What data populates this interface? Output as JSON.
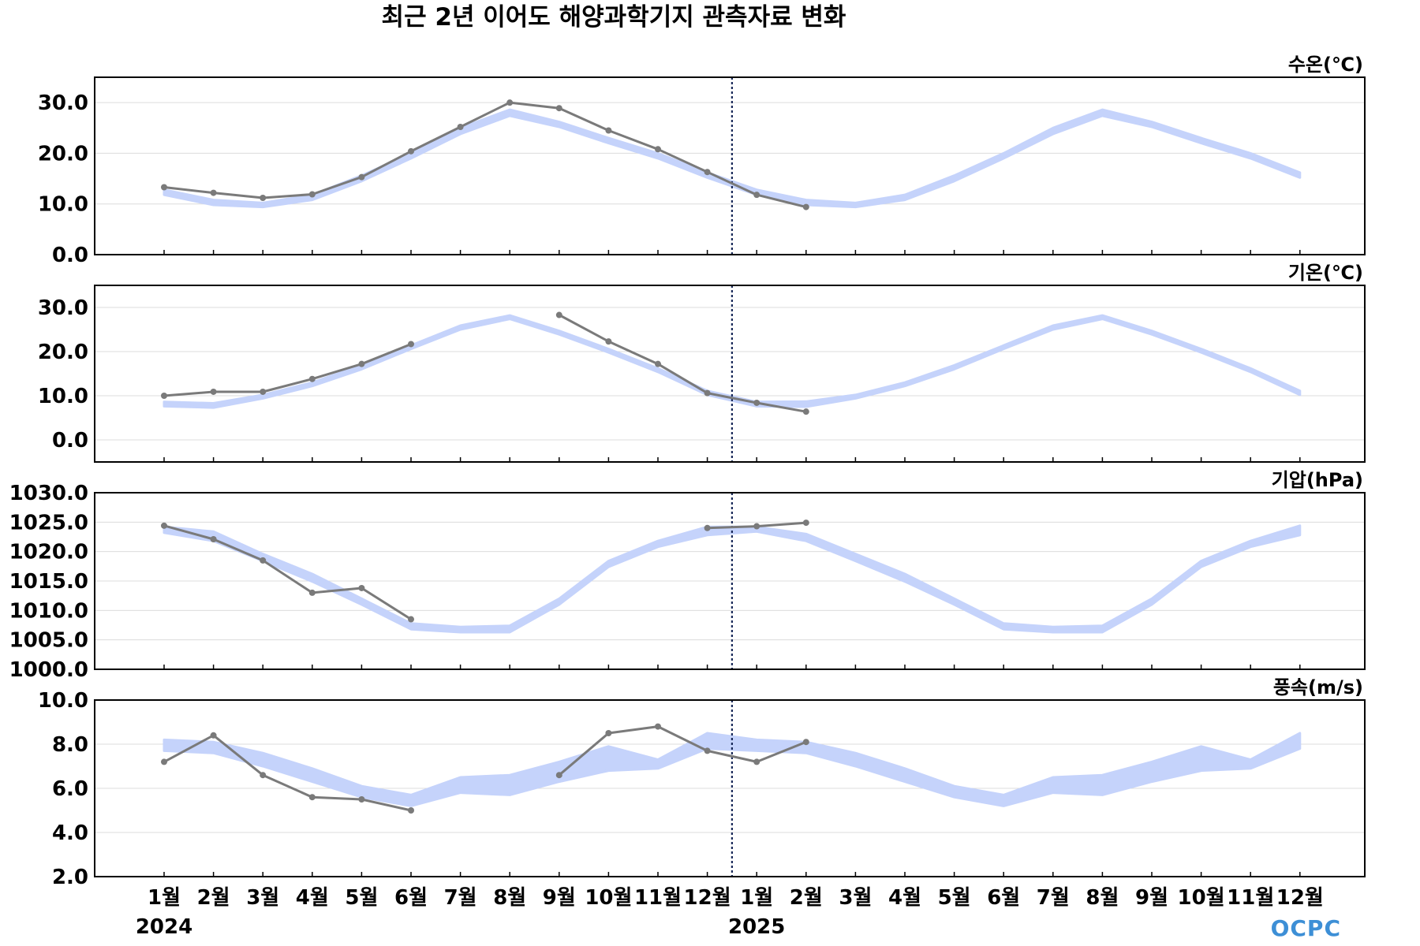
{
  "title": "최근 2년 이어도 해양과학기지 관측자료 변화",
  "logo": "OCPC",
  "colors": {
    "band": "#c5d3fb",
    "observed": "#7a7a7a",
    "divider": "#1a2a5a",
    "grid": "#dcdcdc"
  },
  "x_tick_labels": [
    "1월",
    "2월",
    "3월",
    "4월",
    "5월",
    "6월",
    "7월",
    "8월",
    "9월",
    "10월",
    "11월",
    "12월",
    "1월",
    "2월",
    "3월",
    "4월",
    "5월",
    "6월",
    "7월",
    "8월",
    "9월",
    "10월",
    "11월",
    "12월"
  ],
  "years": [
    {
      "label": "2024",
      "month_index": 0
    },
    {
      "label": "2025",
      "month_index": 12
    }
  ],
  "divider_between_month_index": [
    11,
    12
  ],
  "chart_data": [
    {
      "type": "line",
      "label": "수온(℃)",
      "ylim": [
        0,
        35
      ],
      "yticks": [
        0,
        10,
        20,
        30
      ],
      "ytick_labels": [
        "0.0",
        "10.0",
        "20.0",
        "30.0"
      ],
      "grid": true,
      "climatology_band": {
        "lower": [
          11.8,
          9.8,
          9.4,
          10.8,
          14.5,
          19.0,
          23.8,
          27.4,
          25.2,
          22.0,
          19.0,
          15.2,
          11.8,
          9.8,
          9.4,
          10.8,
          14.5,
          19.0,
          23.8,
          27.4,
          25.2,
          22.0,
          19.0,
          15.2
        ],
        "upper": [
          12.8,
          10.8,
          10.2,
          11.8,
          15.6,
          20.0,
          25.0,
          28.6,
          26.2,
          23.0,
          20.0,
          16.2,
          12.8,
          10.8,
          10.2,
          11.8,
          15.6,
          20.0,
          25.0,
          28.6,
          26.2,
          23.0,
          20.0,
          16.2
        ]
      },
      "observed": [
        13.3,
        12.2,
        11.2,
        11.9,
        15.3,
        20.4,
        25.2,
        30.0,
        28.9,
        24.5,
        20.8,
        16.3,
        11.8,
        9.4,
        null,
        null,
        null,
        null,
        null,
        null,
        null,
        null,
        null,
        null
      ]
    },
    {
      "type": "line",
      "label": "기온(℃)",
      "ylim": [
        -5,
        35
      ],
      "yticks": [
        0,
        10,
        20,
        30
      ],
      "ytick_labels": [
        "0.0",
        "10.0",
        "20.0",
        "30.0"
      ],
      "grid": true,
      "climatology_band": {
        "lower": [
          7.6,
          7.3,
          9.4,
          12.2,
          16.0,
          20.6,
          25.0,
          27.4,
          23.9,
          19.8,
          15.4,
          10.2,
          7.6,
          7.5,
          9.4,
          12.2,
          16.0,
          20.6,
          25.0,
          27.4,
          23.9,
          19.8,
          15.4,
          10.2
        ],
        "upper": [
          8.6,
          8.3,
          10.2,
          13.0,
          16.9,
          21.4,
          25.9,
          28.2,
          24.7,
          20.6,
          16.2,
          11.1,
          8.6,
          8.7,
          10.2,
          13.0,
          16.9,
          21.4,
          25.9,
          28.2,
          24.7,
          20.6,
          16.2,
          11.1
        ]
      },
      "observed": [
        10.0,
        10.9,
        10.9,
        13.8,
        17.2,
        21.7,
        null,
        null,
        28.3,
        22.3,
        17.2,
        10.6,
        8.4,
        6.4,
        null,
        null,
        null,
        null,
        null,
        null,
        null,
        null,
        null,
        null
      ]
    },
    {
      "type": "line",
      "label": "기압(hPa)",
      "ylim": [
        1000,
        1030
      ],
      "yticks": [
        1000,
        1005,
        1010,
        1015,
        1020,
        1025,
        1030
      ],
      "ytick_labels": [
        "1000.0",
        "1005.0",
        "1010.0",
        "1015.0",
        "1020.0",
        "1025.0",
        "1030.0"
      ],
      "grid": true,
      "climatology_band": {
        "lower": [
          1023.2,
          1021.8,
          1018.4,
          1014.9,
          1011.0,
          1006.8,
          1006.3,
          1006.3,
          1011.0,
          1017.4,
          1020.8,
          1022.8,
          1023.4,
          1021.8,
          1018.4,
          1014.9,
          1011.0,
          1006.8,
          1006.3,
          1006.3,
          1011.0,
          1017.4,
          1020.8,
          1022.8
        ],
        "upper": [
          1024.2,
          1023.4,
          1019.6,
          1016.2,
          1012.0,
          1007.8,
          1007.2,
          1007.4,
          1012.0,
          1018.4,
          1021.8,
          1024.2,
          1024.2,
          1023.0,
          1019.6,
          1016.2,
          1012.0,
          1007.8,
          1007.2,
          1007.4,
          1012.0,
          1018.4,
          1021.8,
          1024.4
        ]
      },
      "observed": [
        1024.4,
        1022.1,
        1018.5,
        1013.0,
        1013.8,
        1008.5,
        null,
        null,
        null,
        null,
        null,
        1024.0,
        1024.3,
        1024.9,
        null,
        null,
        null,
        null,
        null,
        null,
        null,
        null,
        null,
        null
      ]
    },
    {
      "type": "line",
      "label": "풍속(m/s)",
      "ylim": [
        2,
        10
      ],
      "yticks": [
        2,
        4,
        6,
        8,
        10
      ],
      "ytick_labels": [
        "2.0",
        "4.0",
        "6.0",
        "8.0",
        "10.0"
      ],
      "grid": true,
      "climatology_band": {
        "lower": [
          7.7,
          7.6,
          7.0,
          6.3,
          5.6,
          5.2,
          5.8,
          5.7,
          6.3,
          6.8,
          6.9,
          7.8,
          7.7,
          7.6,
          7.0,
          6.3,
          5.6,
          5.2,
          5.8,
          5.7,
          6.3,
          6.8,
          6.9,
          7.8
        ],
        "upper": [
          8.2,
          8.1,
          7.6,
          6.9,
          6.1,
          5.7,
          6.5,
          6.6,
          7.2,
          7.9,
          7.3,
          8.5,
          8.2,
          8.1,
          7.6,
          6.9,
          6.1,
          5.7,
          6.5,
          6.6,
          7.2,
          7.9,
          7.3,
          8.5
        ]
      },
      "observed": [
        7.2,
        8.4,
        6.6,
        5.6,
        5.5,
        5.0,
        null,
        null,
        6.6,
        8.5,
        8.8,
        7.7,
        7.2,
        8.1,
        null,
        null,
        null,
        null,
        null,
        null,
        null,
        null,
        null,
        null
      ]
    }
  ]
}
